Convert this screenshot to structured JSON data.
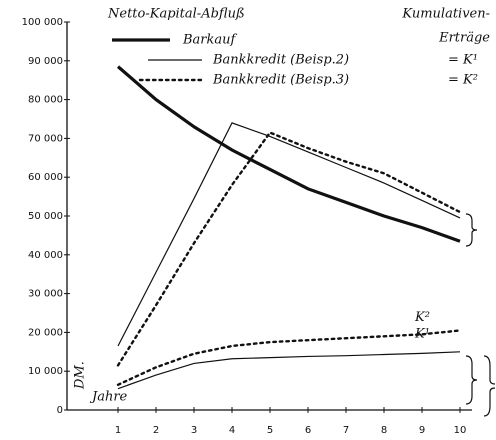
{
  "chart_data": {
    "type": "line",
    "title": "Netto-Kapital-Abfluß",
    "right_title": [
      "Kumulativen-",
      "Erträge"
    ],
    "y_label": "DM.",
    "x_label": "Jahre",
    "categories": [
      "1",
      "2",
      "3",
      "4",
      "5",
      "6",
      "7",
      "8",
      "9",
      "10"
    ],
    "series": [
      {
        "name": "Barkauf",
        "color": "#111111",
        "style": "thick",
        "values": [
          88500,
          80000,
          73000,
          67000,
          62000,
          57000,
          53500,
          50000,
          47000,
          43500
        ]
      },
      {
        "name": "Bankkredit (Beisp.2)",
        "color": "#111111",
        "style": "thin",
        "suffix": "= K¹",
        "values": [
          16500,
          35500,
          54500,
          74000,
          70500,
          66500,
          62500,
          58500,
          54000,
          49500
        ]
      },
      {
        "name": "Bankkredit (Beisp.3)",
        "color": "#111111",
        "style": "dotted",
        "suffix": "= K²",
        "values": [
          11500,
          27000,
          43000,
          58000,
          71500,
          67500,
          64000,
          61000,
          56000,
          51000
        ]
      },
      {
        "name": "K¹",
        "color": "#111111",
        "style": "thin",
        "values": [
          5500,
          9000,
          12000,
          13200,
          13500,
          13800,
          14000,
          14300,
          14600,
          15000
        ]
      },
      {
        "name": "K²",
        "color": "#111111",
        "style": "dotted",
        "values": [
          6500,
          11000,
          14500,
          16500,
          17500,
          18000,
          18500,
          19000,
          19500,
          20500
        ]
      }
    ],
    "ylim": [
      0,
      100000
    ],
    "yticks": [
      {
        "value": 0,
        "label": "0"
      },
      {
        "value": 10000,
        "label": "10 000"
      },
      {
        "value": 20000,
        "label": "20 000"
      },
      {
        "value": 30000,
        "label": "30 000"
      },
      {
        "value": 40000,
        "label": "40 000"
      },
      {
        "value": 50000,
        "label": "50 000"
      },
      {
        "value": 60000,
        "label": "60 000"
      },
      {
        "value": 70000,
        "label": "70 000"
      },
      {
        "value": 80000,
        "label": "80 000"
      },
      {
        "value": 90000,
        "label": "90 000"
      },
      {
        "value": 100000,
        "label": "100 000"
      }
    ]
  }
}
